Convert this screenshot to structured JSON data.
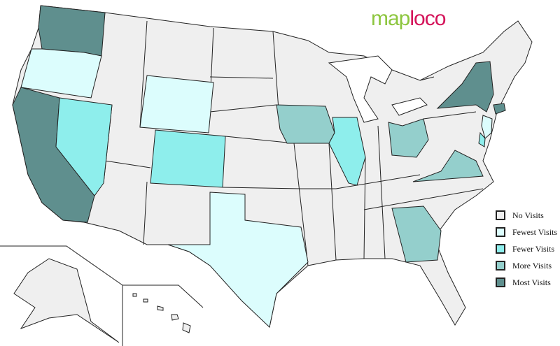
{
  "logo": {
    "part1": "map",
    "part2": "loco"
  },
  "legend": [
    {
      "label": "No Visits",
      "color": "#efefef"
    },
    {
      "label": "Fewest Visits",
      "color": "#dcfdfd"
    },
    {
      "label": "Fewer Visits",
      "color": "#8eeeec"
    },
    {
      "label": "More Visits",
      "color": "#94cfcc"
    },
    {
      "label": "Most Visits",
      "color": "#5f8f8e"
    }
  ],
  "states": [
    {
      "name": "Washington",
      "level": "Most Visits"
    },
    {
      "name": "Oregon",
      "level": "Fewest Visits"
    },
    {
      "name": "California",
      "level": "Most Visits"
    },
    {
      "name": "Nevada",
      "level": "Fewer Visits"
    },
    {
      "name": "Wyoming",
      "level": "Fewest Visits"
    },
    {
      "name": "Colorado",
      "level": "Fewer Visits"
    },
    {
      "name": "Texas",
      "level": "Fewest Visits"
    },
    {
      "name": "Iowa",
      "level": "More Visits"
    },
    {
      "name": "Illinois",
      "level": "Fewer Visits"
    },
    {
      "name": "Ohio",
      "level": "More Visits"
    },
    {
      "name": "Georgia",
      "level": "More Visits"
    },
    {
      "name": "Virginia",
      "level": "More Visits"
    },
    {
      "name": "New York",
      "level": "Most Visits"
    },
    {
      "name": "New Jersey",
      "level": "Fewest Visits"
    },
    {
      "name": "Delaware",
      "level": "Fewer Visits"
    },
    {
      "name": "Connecticut",
      "level": "Most Visits"
    }
  ]
}
